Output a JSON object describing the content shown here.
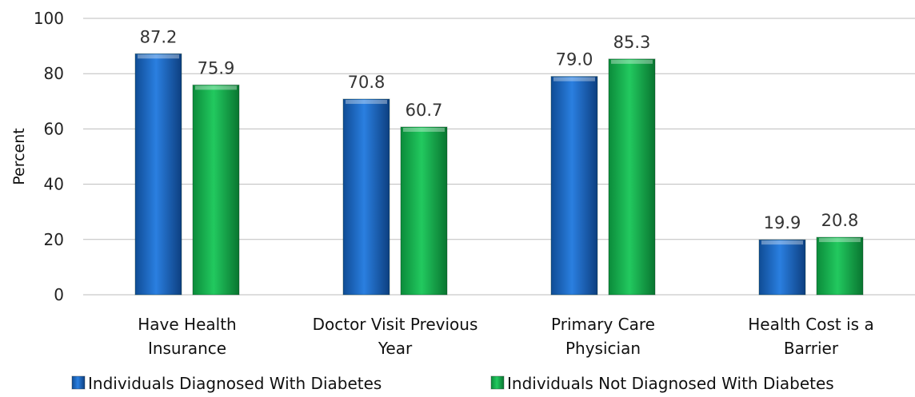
{
  "chart_data": {
    "type": "bar",
    "categories": [
      [
        "Have Health",
        "Insurance"
      ],
      [
        "Doctor Visit Previous",
        "Year"
      ],
      [
        "Primary Care",
        "Physician"
      ],
      [
        "Health Cost is a",
        "Barrier"
      ]
    ],
    "series": [
      {
        "name": "Individuals Diagnosed With Diabetes",
        "values": [
          87.2,
          70.8,
          79.0,
          19.9
        ],
        "color": "#1f6fcf"
      },
      {
        "name": "Individuals Not Diagnosed With Diabetes",
        "values": [
          75.9,
          60.7,
          85.3,
          20.8
        ],
        "color": "#1fbf55"
      }
    ],
    "ylabel": "Percent",
    "ylim": [
      0,
      100
    ],
    "yticks": [
      0,
      20,
      40,
      60,
      80,
      100
    ],
    "grid": true,
    "legend_position": "bottom",
    "value_format": "one-decimal"
  }
}
